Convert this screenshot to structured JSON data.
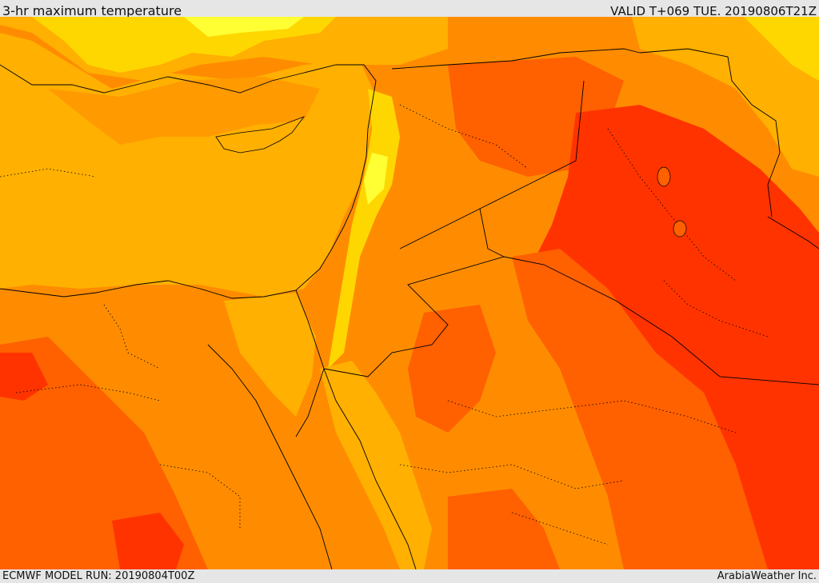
{
  "header": {
    "title": "3-hr maximum temperature",
    "valid": "VALID T+069 TUE. 20190806T21Z"
  },
  "footer": {
    "model_run": "ECMWF MODEL RUN: 20190804T00Z",
    "credit": "ArabiaWeather Inc."
  },
  "palette": {
    "yellow": "#ffff33",
    "yellow_orange": "#ffd700",
    "light_orange": "#ffb000",
    "orange": "#ff8c00",
    "dark_orange": "#ff6000",
    "red_orange": "#ff3300",
    "boundary": "#000000"
  }
}
